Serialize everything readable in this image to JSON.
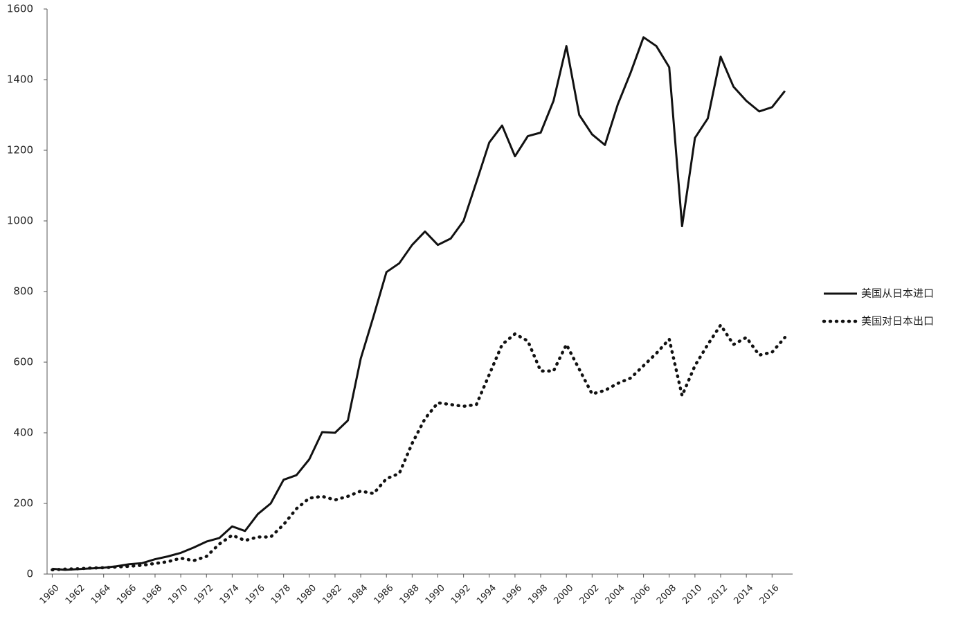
{
  "chart_data": {
    "type": "line",
    "x": [
      1960,
      1961,
      1962,
      1963,
      1964,
      1965,
      1966,
      1967,
      1968,
      1969,
      1970,
      1971,
      1972,
      1973,
      1974,
      1975,
      1976,
      1977,
      1978,
      1979,
      1980,
      1981,
      1982,
      1983,
      1984,
      1985,
      1986,
      1987,
      1988,
      1989,
      1990,
      1991,
      1992,
      1993,
      1994,
      1995,
      1996,
      1997,
      1998,
      1999,
      2000,
      2001,
      2002,
      2003,
      2004,
      2005,
      2006,
      2007,
      2008,
      2009,
      2010,
      2011,
      2012,
      2013,
      2014,
      2015,
      2016,
      2017
    ],
    "series": [
      {
        "name": "美国从日本进口",
        "color": "#111111",
        "style": "solid",
        "values": [
          15,
          12,
          14,
          16,
          18,
          22,
          28,
          31,
          42,
          50,
          60,
          75,
          92,
          102,
          135,
          122,
          170,
          200,
          267,
          280,
          325,
          402,
          400,
          435,
          610,
          730,
          855,
          880,
          932,
          970,
          932,
          950,
          1000,
          1110,
          1222,
          1270,
          1183,
          1240,
          1250,
          1340,
          1495,
          1300,
          1245,
          1215,
          1330,
          1420,
          1520,
          1495,
          1435,
          985,
          1235,
          1290,
          1465,
          1380,
          1340,
          1310,
          1322,
          1368
        ]
      },
      {
        "name": "美国对日本出口",
        "color": "#111111",
        "style": "dotted",
        "values": [
          12,
          14,
          15,
          17,
          18,
          20,
          22,
          25,
          30,
          35,
          45,
          38,
          50,
          85,
          110,
          95,
          105,
          105,
          140,
          185,
          215,
          220,
          210,
          220,
          235,
          228,
          270,
          285,
          370,
          440,
          485,
          480,
          475,
          480,
          565,
          650,
          680,
          660,
          575,
          575,
          650,
          580,
          510,
          520,
          540,
          555,
          590,
          625,
          665,
          505,
          590,
          650,
          705,
          650,
          670,
          620,
          628,
          670
        ]
      }
    ],
    "xlim": [
      1959.6,
      2017.6
    ],
    "xticks": [
      1960,
      1962,
      1964,
      1966,
      1968,
      1970,
      1972,
      1974,
      1976,
      1978,
      1980,
      1982,
      1984,
      1986,
      1988,
      1990,
      1992,
      1994,
      1996,
      1998,
      2000,
      2002,
      2004,
      2006,
      2008,
      2010,
      2012,
      2014,
      2016
    ],
    "ylim": [
      0,
      1600
    ],
    "yticks": [
      0,
      200,
      400,
      600,
      800,
      1000,
      1200,
      1400,
      1600
    ],
    "grid": false,
    "legend": "right"
  }
}
